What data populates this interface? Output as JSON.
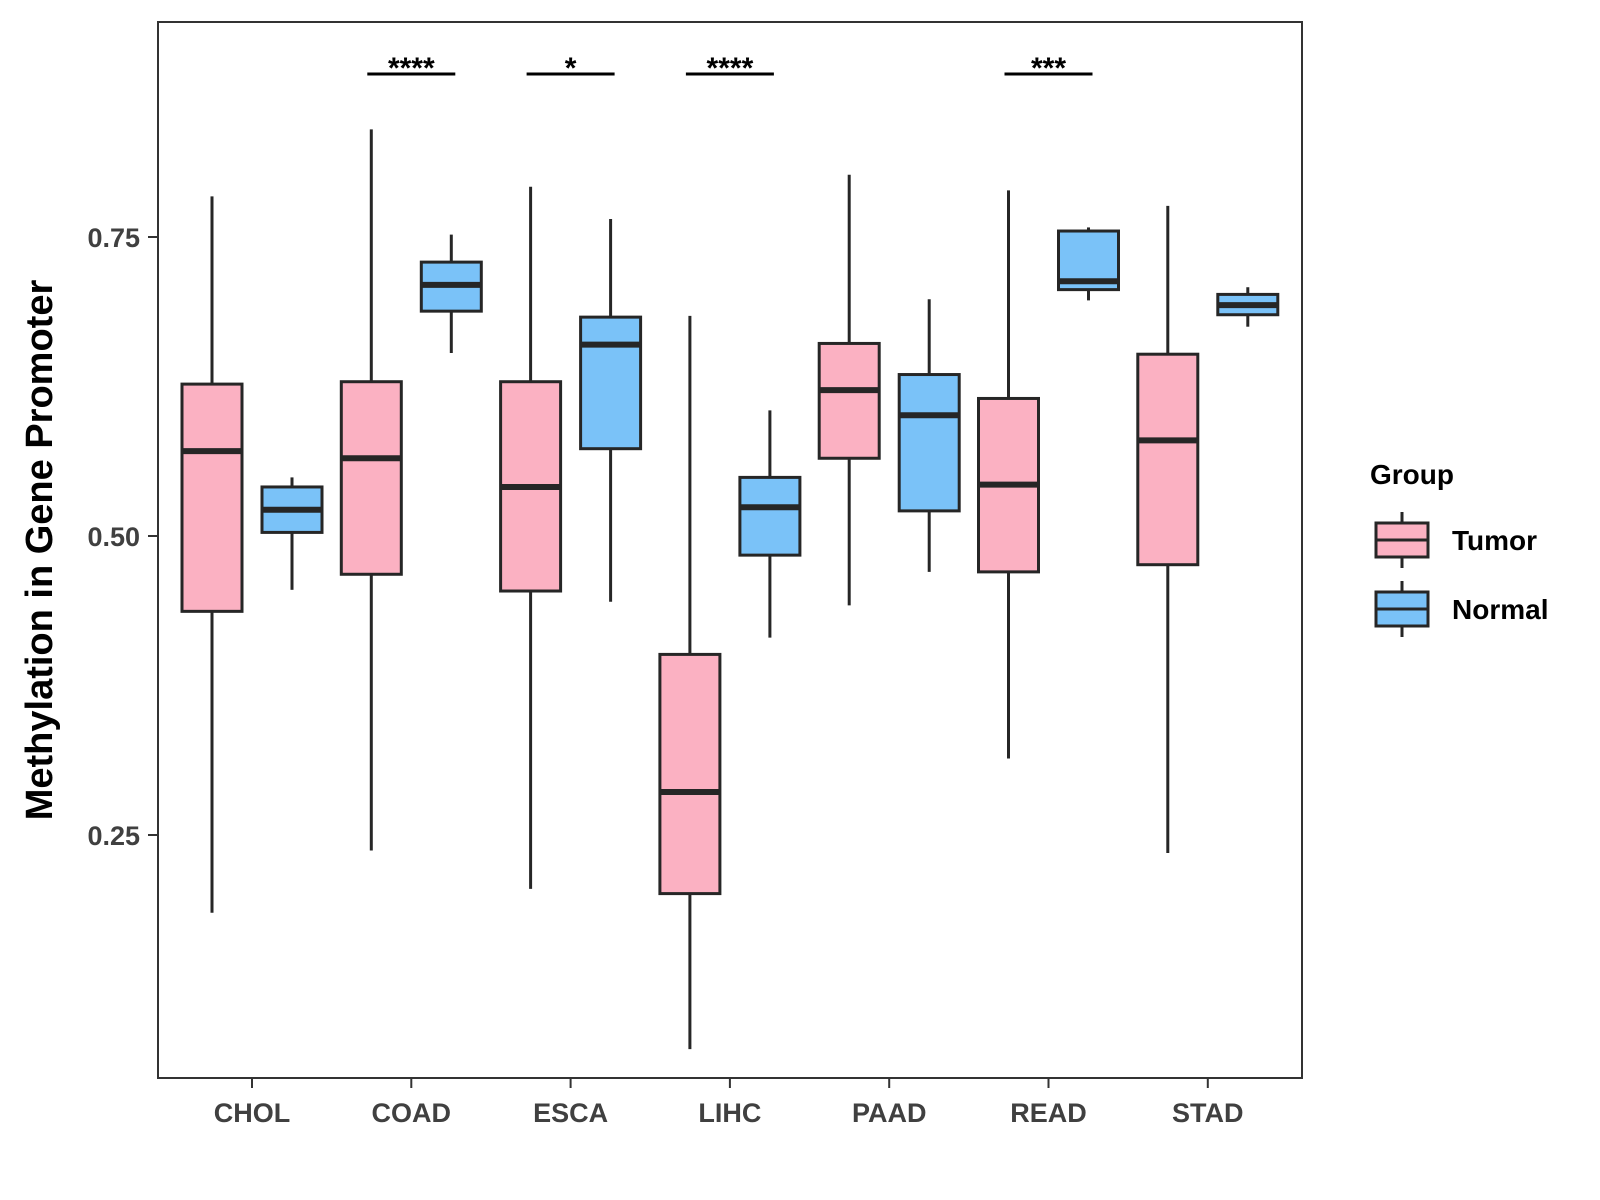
{
  "chart_data": {
    "type": "boxplot",
    "title": "",
    "xlabel": "",
    "ylabel": "Methylation in Gene Promoter",
    "ylim": [
      0.05,
      0.93
    ],
    "yticks": [
      0.25,
      0.5,
      0.75
    ],
    "ytick_labels": [
      "0.25",
      "0.50",
      "0.75"
    ],
    "grid": false,
    "legend": {
      "title": "Group",
      "position": "right",
      "entries": [
        {
          "label": "Tumor",
          "color": "#FBB1C2"
        },
        {
          "label": "Normal",
          "color": "#7AC2F8"
        }
      ]
    },
    "categories": [
      "CHOL",
      "COAD",
      "ESCA",
      "LIHC",
      "PAAD",
      "READ",
      "STAD"
    ],
    "series": [
      {
        "name": "Tumor",
        "color": "#FBB1C2",
        "boxes": [
          {
            "whisker_low": 0.185,
            "q1": 0.437,
            "median": 0.571,
            "q3": 0.627,
            "whisker_high": 0.784
          },
          {
            "whisker_low": 0.237,
            "q1": 0.468,
            "median": 0.565,
            "q3": 0.629,
            "whisker_high": 0.84
          },
          {
            "whisker_low": 0.205,
            "q1": 0.454,
            "median": 0.541,
            "q3": 0.629,
            "whisker_high": 0.792
          },
          {
            "whisker_low": 0.071,
            "q1": 0.201,
            "median": 0.286,
            "q3": 0.401,
            "whisker_high": 0.684
          },
          {
            "whisker_low": 0.442,
            "q1": 0.565,
            "median": 0.622,
            "q3": 0.661,
            "whisker_high": 0.802
          },
          {
            "whisker_low": 0.314,
            "q1": 0.47,
            "median": 0.543,
            "q3": 0.615,
            "whisker_high": 0.789
          },
          {
            "whisker_low": 0.235,
            "q1": 0.476,
            "median": 0.58,
            "q3": 0.652,
            "whisker_high": 0.776
          }
        ]
      },
      {
        "name": "Normal",
        "color": "#7AC2F8",
        "boxes": [
          {
            "whisker_low": 0.455,
            "q1": 0.503,
            "median": 0.522,
            "q3": 0.541,
            "whisker_high": 0.549
          },
          {
            "whisker_low": 0.653,
            "q1": 0.688,
            "median": 0.71,
            "q3": 0.729,
            "whisker_high": 0.752
          },
          {
            "whisker_low": 0.445,
            "q1": 0.573,
            "median": 0.66,
            "q3": 0.683,
            "whisker_high": 0.765
          },
          {
            "whisker_low": 0.415,
            "q1": 0.484,
            "median": 0.524,
            "q3": 0.549,
            "whisker_high": 0.605
          },
          {
            "whisker_low": 0.47,
            "q1": 0.521,
            "median": 0.601,
            "q3": 0.635,
            "whisker_high": 0.698
          },
          {
            "whisker_low": 0.697,
            "q1": 0.706,
            "median": 0.713,
            "q3": 0.755,
            "whisker_high": 0.758
          },
          {
            "whisker_low": 0.675,
            "q1": 0.685,
            "median": 0.693,
            "q3": 0.702,
            "whisker_high": 0.708
          }
        ]
      }
    ],
    "significance": [
      {
        "category": "COAD",
        "label": "****"
      },
      {
        "category": "ESCA",
        "label": "*"
      },
      {
        "category": "LIHC",
        "label": "****"
      },
      {
        "category": "READ",
        "label": "***"
      }
    ]
  }
}
